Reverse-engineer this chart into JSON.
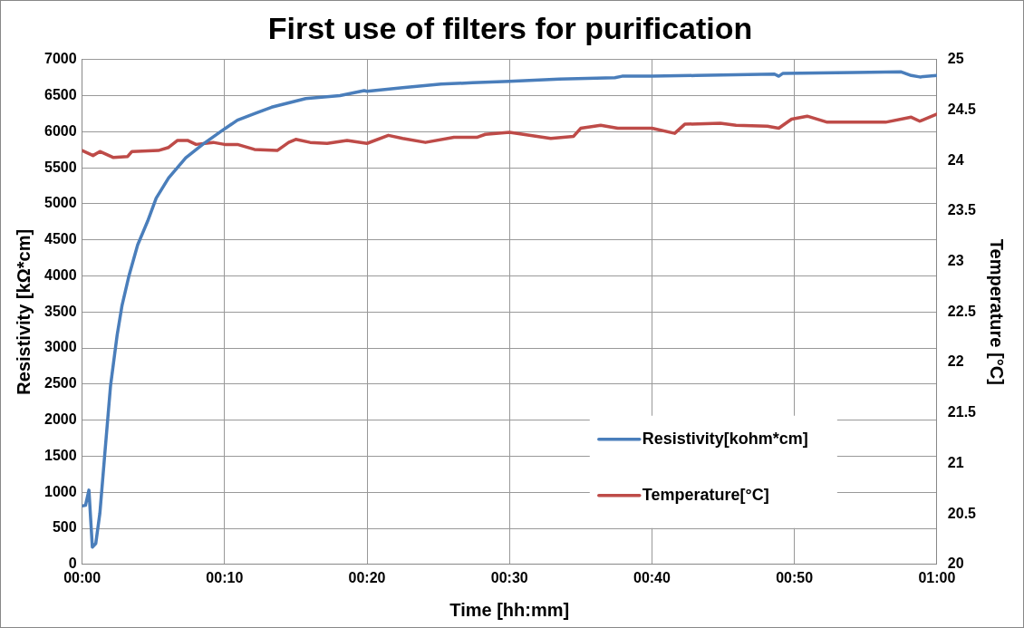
{
  "chart_data": {
    "type": "line",
    "title": "First use of filters for purification",
    "xlabel": "Time [hh:mm]",
    "ylabel": "Resistivity [kΩ*cm]",
    "y2label": "Temperature [°C]",
    "xlim": [
      0,
      1
    ],
    "xticks": [
      {
        "value": 0,
        "label": "00:00"
      },
      {
        "value": 0.16667,
        "label": "00:10"
      },
      {
        "value": 0.33333,
        "label": "00:20"
      },
      {
        "value": 0.5,
        "label": "00:30"
      },
      {
        "value": 0.66667,
        "label": "00:40"
      },
      {
        "value": 0.83333,
        "label": "00:50"
      },
      {
        "value": 1,
        "label": "01:00"
      }
    ],
    "ylim": [
      0,
      7000
    ],
    "yticks": [
      0,
      500,
      1000,
      1500,
      2000,
      2500,
      3000,
      3500,
      4000,
      4500,
      5000,
      5500,
      6000,
      6500,
      7000
    ],
    "y2lim": [
      20,
      25
    ],
    "y2ticks": [
      20,
      20.5,
      21,
      21.5,
      22,
      22.5,
      23,
      23.5,
      24,
      24.5,
      25
    ],
    "grid": true,
    "legend": "bottom right",
    "marker": "none",
    "line_style": "solid",
    "series": [
      {
        "name": "Resistivity[kohm*cm]",
        "color": "#4a7ebb",
        "x": [
          0,
          0.004,
          0.008,
          0.012,
          0.016,
          0.0208,
          0.0267,
          0.0333,
          0.041,
          0.0467,
          0.055,
          0.065,
          0.0767,
          0.0867,
          0.1012,
          0.1213,
          0.1417,
          0.1667,
          0.1817,
          0.2017,
          0.2217,
          0.2617,
          0.3017,
          0.33,
          0.3333,
          0.375,
          0.42,
          0.4567,
          0.5,
          0.5583,
          0.6233,
          0.6317,
          0.6667,
          0.7183,
          0.81,
          0.815,
          0.82,
          0.9033,
          0.9583,
          0.97,
          0.98,
          1
        ],
        "values": [
          810,
          820,
          1030,
          240,
          290,
          710,
          1550,
          2480,
          3180,
          3590,
          4010,
          4430,
          4760,
          5080,
          5360,
          5640,
          5830,
          6040,
          6160,
          6250,
          6340,
          6460,
          6500,
          6570,
          6560,
          6610,
          6660,
          6680,
          6700,
          6730,
          6750,
          6770,
          6770,
          6780,
          6800,
          6770,
          6810,
          6820,
          6830,
          6780,
          6760,
          6780
        ]
      },
      {
        "name": "Temperature[°C]",
        "color": "#be4b48",
        "axis": "y2",
        "x": [
          0,
          0.0128,
          0.0208,
          0.0367,
          0.0533,
          0.0583,
          0.0892,
          0.1012,
          0.1117,
          0.1233,
          0.1333,
          0.1533,
          0.1667,
          0.1817,
          0.2017,
          0.2283,
          0.2417,
          0.25,
          0.2667,
          0.2867,
          0.31,
          0.3333,
          0.3583,
          0.375,
          0.4017,
          0.435,
          0.4617,
          0.4717,
          0.5,
          0.5483,
          0.575,
          0.5833,
          0.6067,
          0.6267,
          0.6667,
          0.6933,
          0.705,
          0.7467,
          0.765,
          0.8017,
          0.815,
          0.83,
          0.8483,
          0.8717,
          0.9033,
          0.94,
          0.97,
          0.98,
          1
        ],
        "values": [
          24.1,
          24.05,
          24.09,
          24.03,
          24.04,
          24.09,
          24.1,
          24.13,
          24.2,
          24.2,
          24.16,
          24.18,
          24.16,
          24.16,
          24.11,
          24.1,
          24.18,
          24.21,
          24.18,
          24.17,
          24.2,
          24.17,
          24.25,
          24.22,
          24.18,
          24.23,
          24.23,
          24.26,
          24.28,
          24.22,
          24.24,
          24.32,
          24.35,
          24.32,
          24.32,
          24.27,
          24.36,
          24.37,
          24.35,
          24.34,
          24.32,
          24.41,
          24.44,
          24.38,
          24.38,
          24.38,
          24.43,
          24.39,
          24.46
        ]
      }
    ]
  }
}
